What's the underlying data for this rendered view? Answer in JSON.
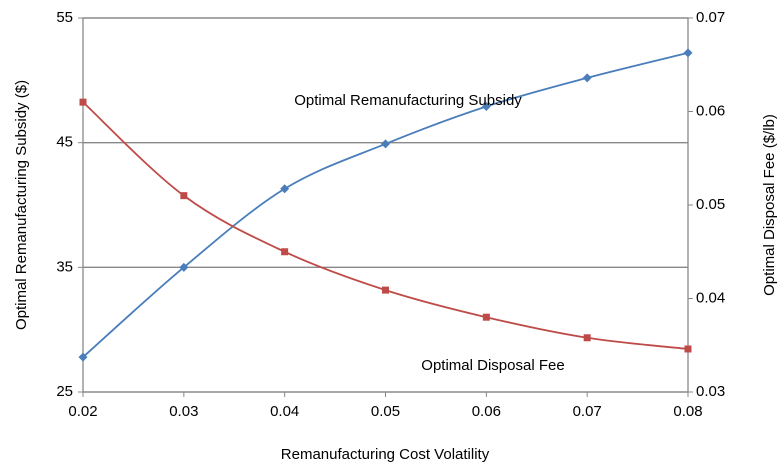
{
  "chart_data": {
    "type": "line",
    "x": [
      0.02,
      0.03,
      0.04,
      0.05,
      0.06,
      0.07,
      0.08
    ],
    "xlim": [
      0.02,
      0.08
    ],
    "xticks": [
      0.02,
      0.03,
      0.04,
      0.05,
      0.06,
      0.07,
      0.08
    ],
    "ylim": [
      25,
      55
    ],
    "yticks": [
      25,
      35,
      45,
      55
    ],
    "y2lim": [
      0.03,
      0.07
    ],
    "y2ticks": [
      0.03,
      0.04,
      0.05,
      0.06,
      0.07
    ],
    "xlabel": "Remanufacturing Cost Volatility",
    "ylabel": "Optimal Remanufacturing Subsidy ($)",
    "y2label": "Optimal Disposal Fee ($/lb)",
    "grid": true,
    "series": [
      {
        "name": "Optimal Remanufacturing Subsidy",
        "color": "#4a7ebb",
        "marker": "diamond",
        "values": [
          27.8,
          35.0,
          41.3,
          44.9,
          47.9,
          50.2,
          52.2
        ]
      },
      {
        "name": "Optimal Disposal Fee",
        "color": "#be4b48",
        "marker": "square",
        "axis": "y2",
        "values": [
          0.061,
          0.051,
          0.045,
          0.0409,
          0.038,
          0.0358,
          0.0346
        ]
      }
    ]
  }
}
